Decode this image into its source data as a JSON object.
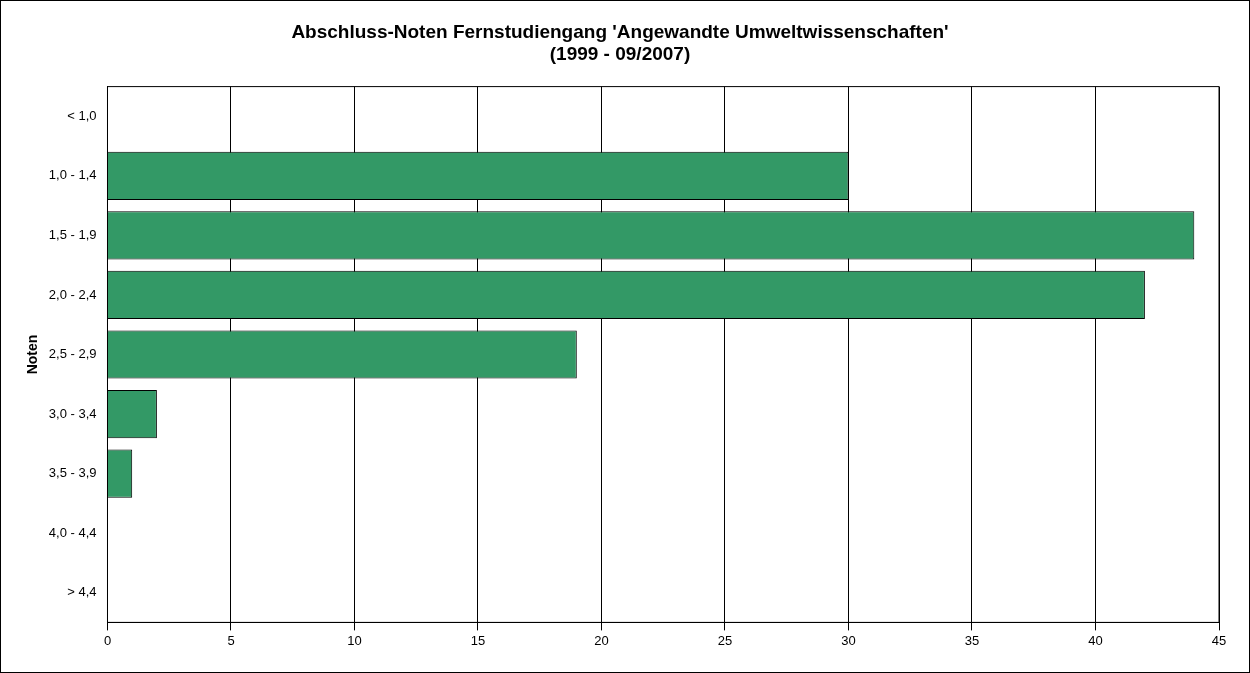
{
  "chart_data": {
    "type": "bar",
    "orientation": "horizontal",
    "title": "Abschluss-Noten Fernstudiengang 'Angewandte Umweltwissenschaften'",
    "subtitle": "(1999 - 09/2007)",
    "ylabel": "Noten",
    "categories": [
      "< 1,0",
      "1,0 - 1,4",
      "1,5 - 1,9",
      "2,0 - 2,4",
      "2,5 - 2,9",
      "3,0 - 3,4",
      "3,5 - 3,9",
      "4,0 - 4,4",
      "> 4,4"
    ],
    "values": [
      0,
      30,
      44,
      42,
      19,
      2,
      1,
      0,
      0
    ],
    "color": "#339966",
    "xlim": [
      0,
      45
    ],
    "xticks": [
      0,
      5,
      10,
      15,
      20,
      25,
      30,
      35,
      40,
      45
    ],
    "grid": "x",
    "legend": false
  }
}
